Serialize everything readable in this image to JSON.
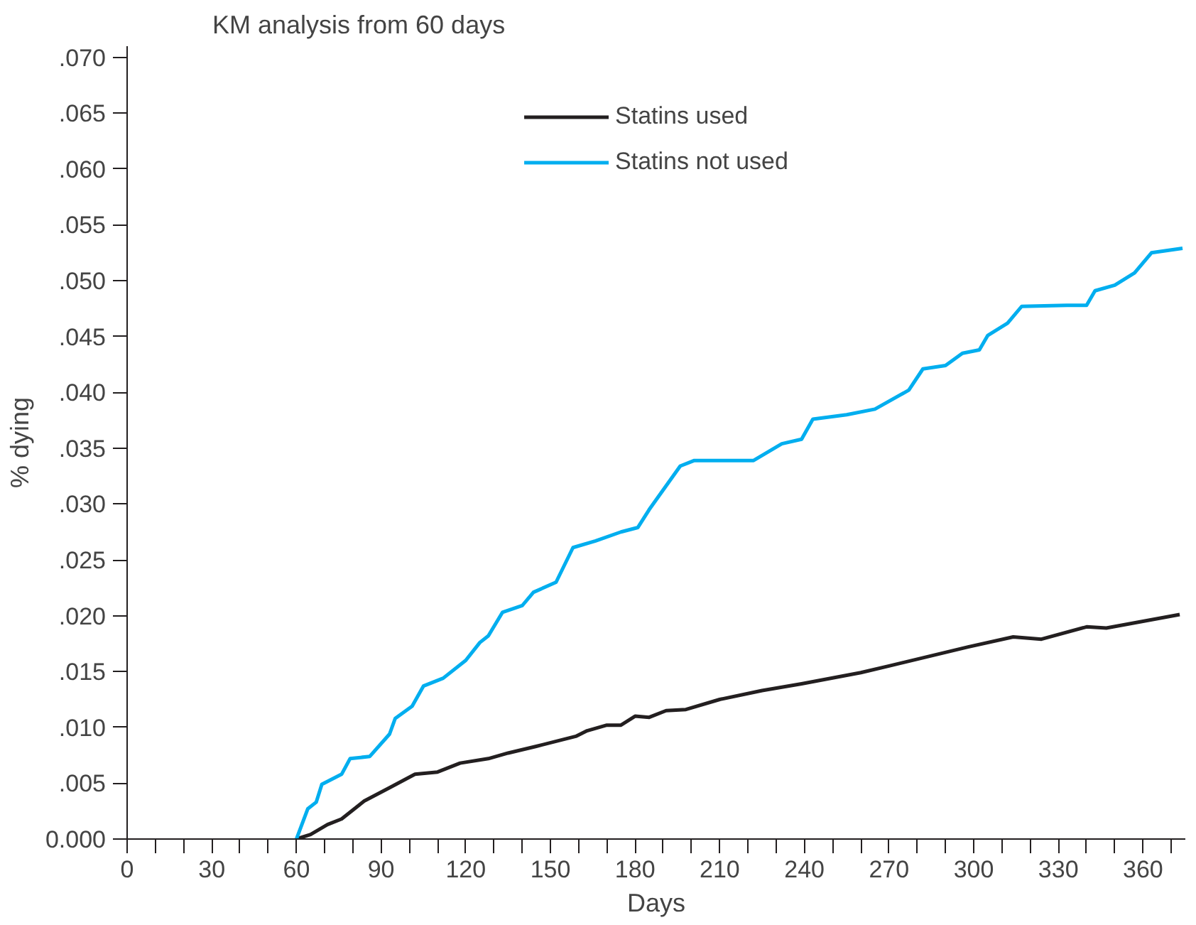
{
  "chart_data": {
    "type": "line",
    "title": "KM analysis from 60 days",
    "xlabel": "Days",
    "ylabel": "% dying",
    "xlim": [
      0,
      375
    ],
    "ylim": [
      0,
      0.071
    ],
    "xticks": [
      0,
      {
        "value": 10,
        "label": null
      },
      {
        "value": 20,
        "label": null
      },
      30,
      {
        "value": 40,
        "label": null
      },
      {
        "value": 50,
        "label": null
      },
      60,
      {
        "value": 70,
        "label": null
      },
      {
        "value": 80,
        "label": null
      },
      90,
      {
        "value": 100,
        "label": null
      },
      {
        "value": 110,
        "label": null
      },
      120,
      {
        "value": 130,
        "label": null
      },
      {
        "value": 140,
        "label": null
      },
      150,
      {
        "value": 160,
        "label": null
      },
      {
        "value": 170,
        "label": null
      },
      180,
      {
        "value": 190,
        "label": null
      },
      {
        "value": 200,
        "label": null
      },
      210,
      {
        "value": 220,
        "label": null
      },
      {
        "value": 230,
        "label": null
      },
      240,
      {
        "value": 250,
        "label": null
      },
      {
        "value": 260,
        "label": null
      },
      270,
      {
        "value": 280,
        "label": null
      },
      {
        "value": 290,
        "label": null
      },
      300,
      {
        "value": 310,
        "label": null
      },
      {
        "value": 320,
        "label": null
      },
      330,
      {
        "value": 340,
        "label": null
      },
      {
        "value": 350,
        "label": null
      },
      360,
      {
        "value": 370,
        "label": null
      }
    ],
    "yticks": [
      {
        "value": 0,
        "label": "0.000"
      },
      {
        "value": 0.005,
        "label": ".005"
      },
      {
        "value": 0.01,
        "label": ".010"
      },
      {
        "value": 0.015,
        "label": ".015"
      },
      {
        "value": 0.02,
        "label": ".020"
      },
      {
        "value": 0.025,
        "label": ".025"
      },
      {
        "value": 0.03,
        "label": ".030"
      },
      {
        "value": 0.035,
        "label": ".035"
      },
      {
        "value": 0.04,
        "label": ".040"
      },
      {
        "value": 0.045,
        "label": ".045"
      },
      {
        "value": 0.05,
        "label": ".050"
      },
      {
        "value": 0.055,
        "label": ".055"
      },
      {
        "value": 0.06,
        "label": ".060"
      },
      {
        "value": 0.065,
        "label": ".065"
      },
      {
        "value": 0.07,
        "label": ".070"
      }
    ],
    "grid": false,
    "legend": "top",
    "marker": "none",
    "line_style": "solid",
    "series": [
      {
        "name": "Statins used",
        "color": "#231f20",
        "x": [
          60,
          65,
          71,
          76,
          84,
          93,
          102,
          110,
          118,
          128,
          135,
          145,
          159,
          163,
          170,
          175,
          180,
          185,
          191,
          198,
          210,
          225,
          239,
          260,
          270,
          298,
          314,
          324,
          340,
          347,
          373
        ],
        "values": [
          0,
          0.0004,
          0.0013,
          0.0018,
          0.0034,
          0.0046,
          0.0058,
          0.006,
          0.0068,
          0.0072,
          0.0077,
          0.0083,
          0.0092,
          0.0097,
          0.0102,
          0.0102,
          0.011,
          0.0109,
          0.0115,
          0.0116,
          0.0125,
          0.0133,
          0.0139,
          0.0149,
          0.0155,
          0.0172,
          0.0181,
          0.0179,
          0.019,
          0.0189,
          0.0201
        ]
      },
      {
        "name": "Statins not used",
        "color": "#00aeef",
        "x": [
          60,
          64,
          67,
          69,
          76,
          79,
          86,
          93,
          95,
          101,
          105,
          112,
          120,
          125,
          128,
          133,
          140,
          144,
          152,
          158,
          166,
          175,
          181,
          185,
          196,
          201,
          222,
          232,
          239,
          243,
          255,
          265,
          277,
          282,
          290,
          296,
          302,
          305,
          312,
          317,
          333,
          340,
          343,
          350,
          357,
          363,
          374
        ],
        "values": [
          0,
          0.0027,
          0.0033,
          0.0049,
          0.0058,
          0.0072,
          0.0074,
          0.0094,
          0.0108,
          0.0119,
          0.0137,
          0.0144,
          0.016,
          0.0176,
          0.0182,
          0.0203,
          0.0209,
          0.0221,
          0.023,
          0.0261,
          0.0267,
          0.0275,
          0.0279,
          0.0295,
          0.0334,
          0.0339,
          0.0339,
          0.0354,
          0.0358,
          0.0376,
          0.038,
          0.0385,
          0.0402,
          0.0421,
          0.0424,
          0.0435,
          0.0438,
          0.0451,
          0.0462,
          0.0477,
          0.0478,
          0.0478,
          0.0491,
          0.0496,
          0.0507,
          0.0525,
          0.0529
        ]
      }
    ]
  }
}
